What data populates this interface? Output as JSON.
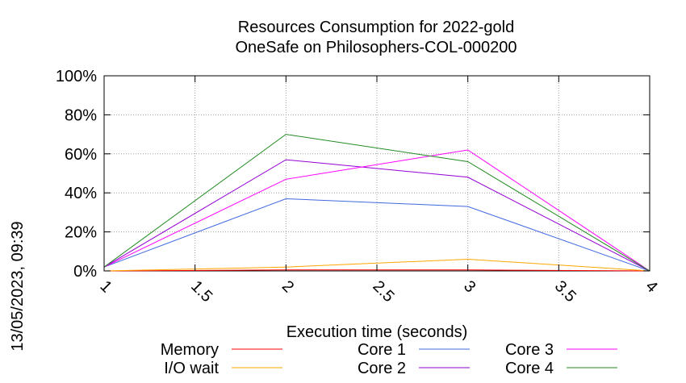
{
  "chart_data": {
    "type": "line",
    "title_lines": [
      "Resources Consumption for 2022-gold",
      "OneSafe on Philosophers-COL-000200"
    ],
    "xlabel": "Execution time (seconds)",
    "ylabel": "",
    "xlim": [
      1,
      4
    ],
    "ylim": [
      0,
      100
    ],
    "x_ticks": [
      "1",
      "1.5",
      "2",
      "2.5",
      "3",
      "3.5",
      "4"
    ],
    "y_ticks": [
      "0%",
      "20%",
      "40%",
      "60%",
      "80%",
      "100%"
    ],
    "grid": true,
    "legend_position": "bottom",
    "x": [
      1,
      2,
      3,
      4
    ],
    "series": [
      {
        "name": "Memory",
        "color": "#ff0000",
        "values": [
          0,
          0.5,
          0.5,
          0
        ]
      },
      {
        "name": "I/O wait",
        "color": "#ffa500",
        "values": [
          0,
          2,
          6,
          0
        ]
      },
      {
        "name": "Core 1",
        "color": "#4169e1",
        "values": [
          2,
          37,
          33,
          0
        ]
      },
      {
        "name": "Core 2",
        "color": "#9400d3",
        "values": [
          2,
          57,
          48,
          0
        ]
      },
      {
        "name": "Core 3",
        "color": "#ff00ff",
        "values": [
          2,
          47,
          62,
          0
        ]
      },
      {
        "name": "Core 4",
        "color": "#228b22",
        "values": [
          2,
          70,
          56,
          0
        ]
      }
    ]
  },
  "timestamp": "13/05/2023, 09:39"
}
